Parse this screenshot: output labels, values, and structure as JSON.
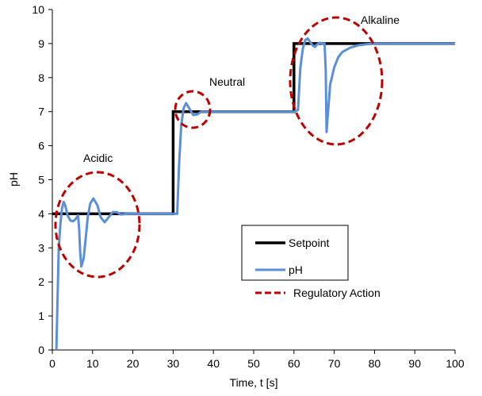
{
  "chart_data": {
    "type": "line",
    "xlabel": "Time, t [s]",
    "ylabel": "pH",
    "xlim": [
      0,
      100
    ],
    "ylim": [
      0,
      10
    ],
    "x_ticks": [
      0,
      10,
      20,
      30,
      40,
      50,
      60,
      70,
      80,
      90,
      100
    ],
    "y_ticks": [
      0,
      1,
      2,
      3,
      4,
      5,
      6,
      7,
      8,
      9,
      10
    ],
    "grid": false,
    "legend_position": "bottom-right",
    "series": [
      {
        "name": "Setpoint",
        "color": "#000000",
        "x": [
          0,
          30,
          30,
          60,
          60,
          100
        ],
        "y": [
          4,
          4,
          7,
          7,
          9,
          9
        ]
      },
      {
        "name": "pH",
        "color": "#5b8fd6",
        "x": [
          1.0,
          1.3,
          1.6,
          2.0,
          2.4,
          2.8,
          3.2,
          3.8,
          4.5,
          5.2,
          5.8,
          6.4,
          6.7,
          6.9,
          7.2,
          7.8,
          8.3,
          8.8,
          9.4,
          10.2,
          11.2,
          12.0,
          13.0,
          14.0,
          15.0,
          16.0,
          17.0,
          18.5,
          20.0,
          25.0,
          30.0,
          31.0,
          31.5,
          32.0,
          32.6,
          33.2,
          34.0,
          35.0,
          36.0,
          37.0,
          38.0,
          40.0,
          50.0,
          60.0,
          61.0,
          61.6,
          62.2,
          62.8,
          63.4,
          64.0,
          64.6,
          65.2,
          65.8,
          66.4,
          67.0,
          67.6,
          67.9,
          68.1,
          68.4,
          69.0,
          70.0,
          71.0,
          72.0,
          74.0,
          76.0,
          78.0,
          80.0,
          85.0,
          100.0
        ],
        "y": [
          0.0,
          1.5,
          3.0,
          3.7,
          4.15,
          4.35,
          4.25,
          3.95,
          3.8,
          3.78,
          3.85,
          3.95,
          3.5,
          2.9,
          2.45,
          2.7,
          3.3,
          3.9,
          4.3,
          4.45,
          4.25,
          3.9,
          3.75,
          3.9,
          4.05,
          4.05,
          3.98,
          4.0,
          4.0,
          4.0,
          4.0,
          4.0,
          5.5,
          6.6,
          7.1,
          7.25,
          7.1,
          6.9,
          6.92,
          7.0,
          7.0,
          7.0,
          7.0,
          7.0,
          7.05,
          8.3,
          8.85,
          9.1,
          9.15,
          9.05,
          8.95,
          8.9,
          8.98,
          9.02,
          9.0,
          9.0,
          8.2,
          6.4,
          6.9,
          7.8,
          8.3,
          8.6,
          8.75,
          8.88,
          8.95,
          8.98,
          9.0,
          9.0,
          9.0
        ]
      }
    ],
    "regulatory_action": {
      "legend_label": "Regulatory Action",
      "color": "#c00000"
    },
    "annotations": [
      "Acidic",
      "Neutral",
      "Alkaline"
    ]
  }
}
